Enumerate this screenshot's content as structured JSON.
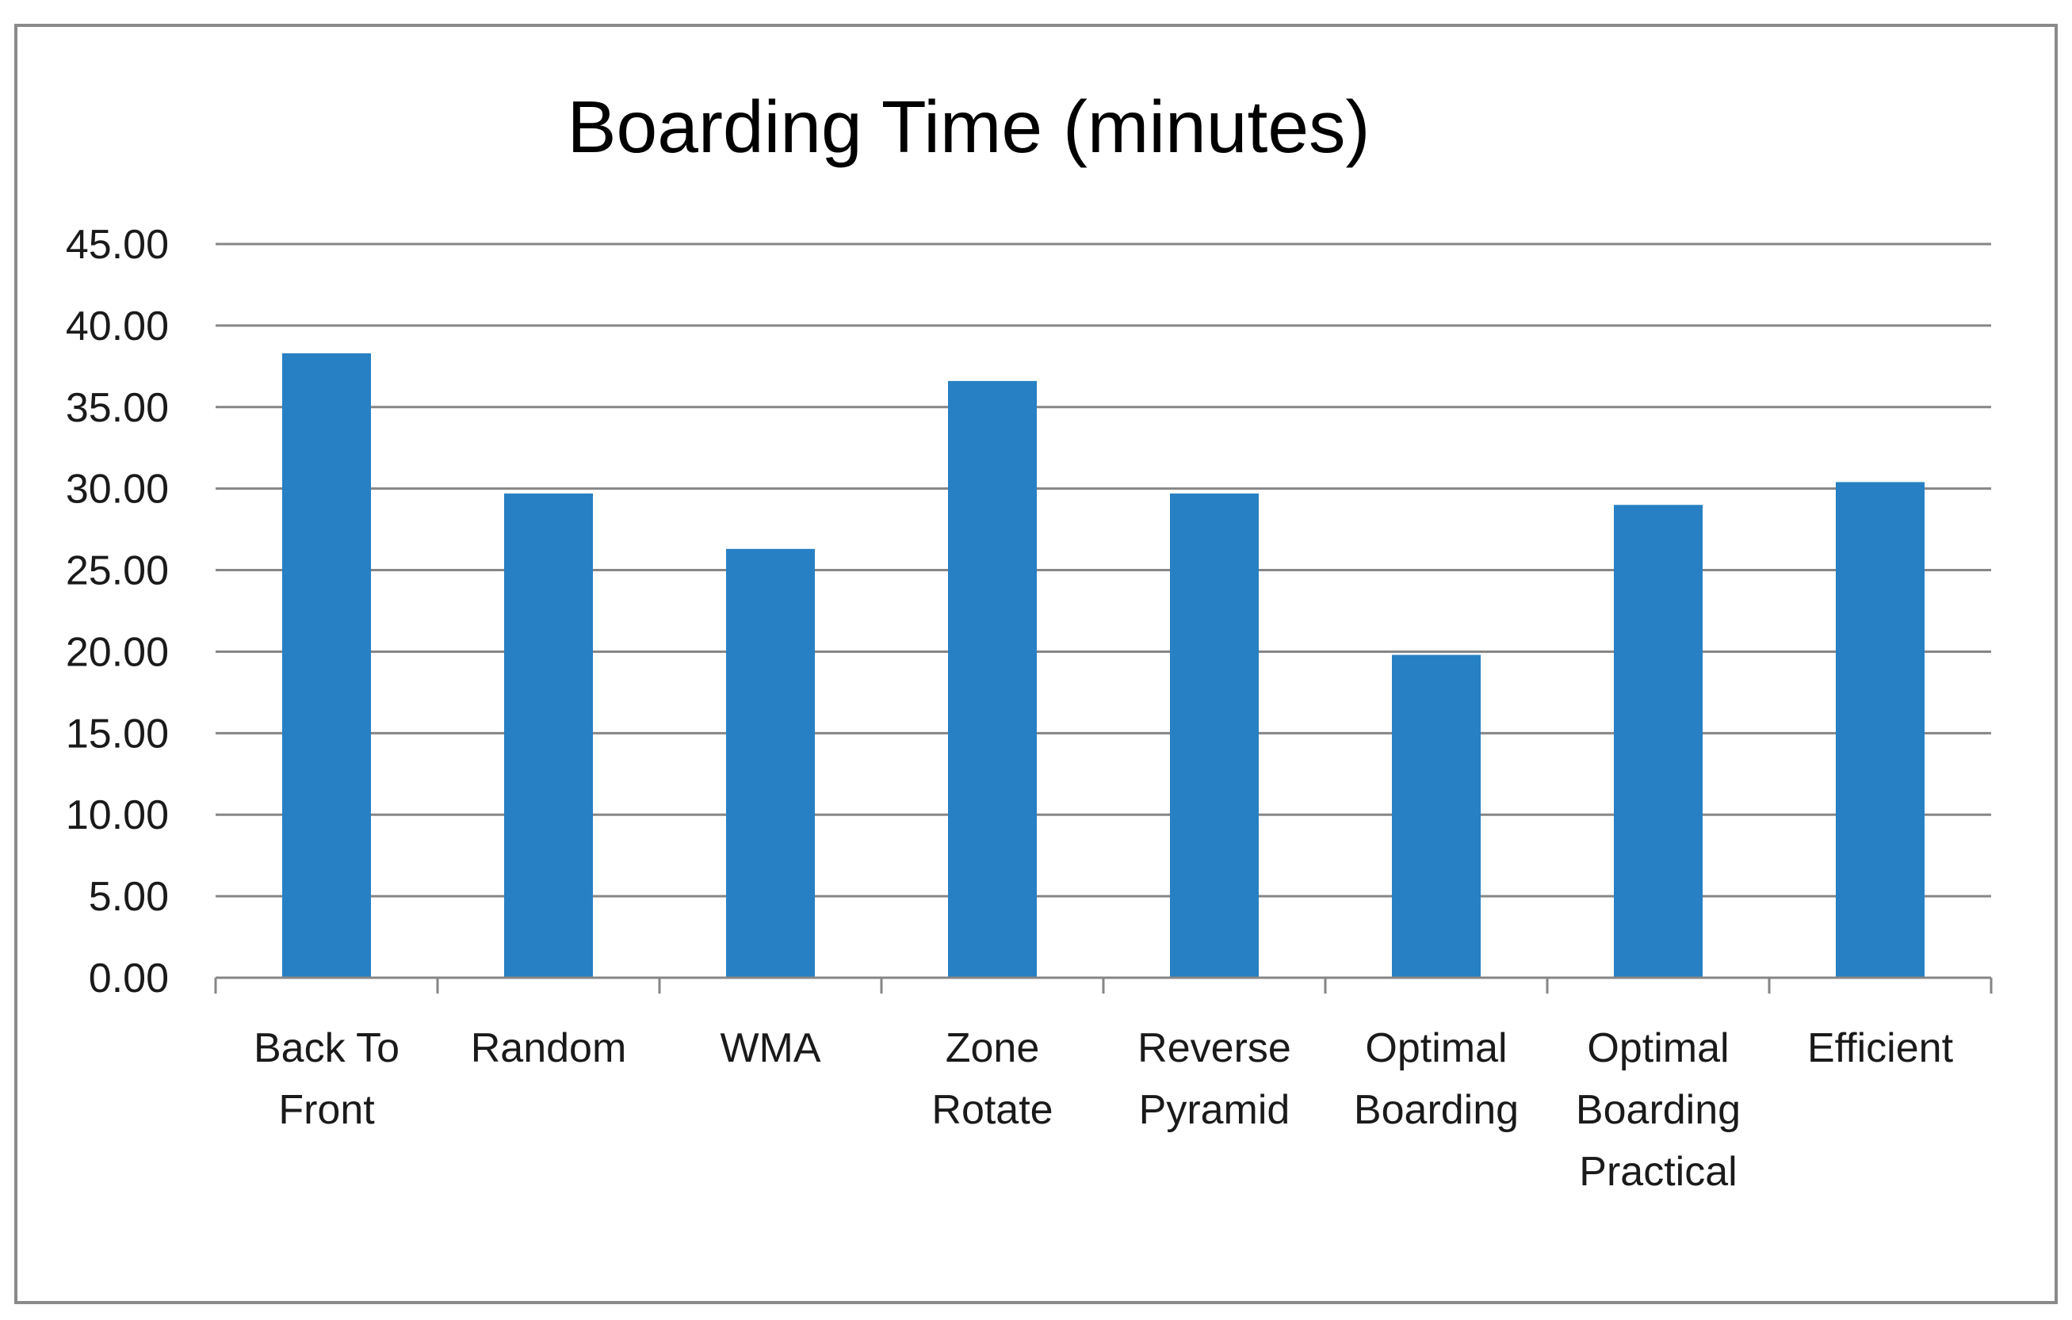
{
  "chart_data": {
    "type": "bar",
    "title": "Boarding Time (minutes)",
    "xlabel": "",
    "ylabel": "",
    "ylim": [
      0,
      45
    ],
    "ytick_step": 5,
    "ytick_labels": [
      "0.00",
      "5.00",
      "10.00",
      "15.00",
      "20.00",
      "25.00",
      "30.00",
      "35.00",
      "40.00",
      "45.00"
    ],
    "grid": true,
    "legend": "none",
    "bar_color": "#2780C3",
    "gridline_color": "#868686",
    "categories": [
      [
        "Back To",
        "Front"
      ],
      [
        "Random"
      ],
      [
        "WMA"
      ],
      [
        "Zone",
        "Rotate"
      ],
      [
        "Reverse",
        "Pyramid"
      ],
      [
        "Optimal",
        "Boarding"
      ],
      [
        "Optimal",
        "Boarding",
        "Practical"
      ],
      [
        "Efficient"
      ]
    ],
    "values": [
      38.3,
      29.7,
      26.3,
      36.6,
      29.7,
      19.8,
      29.0,
      30.4
    ]
  }
}
